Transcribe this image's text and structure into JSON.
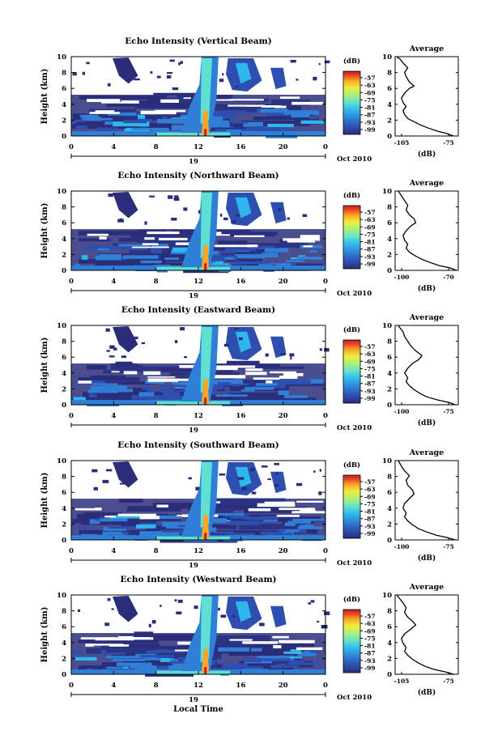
{
  "chart_data": {
    "type": "heatmap",
    "x_label": "Local Time",
    "y_label": "Height (km)",
    "x_ticks": [
      "0",
      "4",
      "8",
      "12",
      "16",
      "20",
      "0"
    ],
    "x_range": [
      0,
      24
    ],
    "y_ticks": [
      "0",
      "2",
      "4",
      "6",
      "8",
      "10"
    ],
    "y_range": [
      0,
      10
    ],
    "date_tick_label": "19",
    "month_label": "Oct 2010",
    "colorbar": {
      "label": "(dB)",
      "ticks": [
        "-57",
        "-63",
        "-69",
        "-75",
        "-81",
        "-87",
        "-93",
        "-99"
      ],
      "colors": [
        "#2a2e7a",
        "#2e4fb0",
        "#2f7fd6",
        "#2fb6ec",
        "#5fe0d0",
        "#a6f07e",
        "#f2ec3a",
        "#f9a52a",
        "#ea4a22",
        "#c41d1d"
      ]
    },
    "average_panel": {
      "title": "Average",
      "x_label": "(dB)",
      "x_ticks": [
        "-105",
        "-75"
      ],
      "x_range": [
        -105,
        -65
      ],
      "y_ticks": [
        "0",
        "2",
        "4",
        "6",
        "8",
        "10"
      ]
    },
    "panels": [
      {
        "title": "Echo Intensity (Vertical Beam)",
        "avg_x_ticks": [
          "-105",
          "-75"
        ],
        "average_profile": [
          [
            -68,
            0
          ],
          [
            -72,
            0.3
          ],
          [
            -78,
            0.6
          ],
          [
            -84,
            1
          ],
          [
            -89,
            1.4
          ],
          [
            -93,
            1.8
          ],
          [
            -97,
            2.2
          ],
          [
            -99,
            2.7
          ],
          [
            -100,
            3.2
          ],
          [
            -98,
            3.7
          ],
          [
            -100,
            4.2
          ],
          [
            -101,
            4.8
          ],
          [
            -99,
            5.4
          ],
          [
            -96,
            6
          ],
          [
            -93,
            6.3
          ],
          [
            -96,
            6.8
          ],
          [
            -98,
            7.5
          ],
          [
            -99,
            8
          ],
          [
            -97,
            8.6
          ],
          [
            -100,
            9.2
          ],
          [
            -102,
            9.7
          ],
          [
            -104,
            10
          ]
        ]
      },
      {
        "title": "Echo Intensity (Northward Beam)",
        "avg_x_ticks": [
          "-100",
          "-70"
        ],
        "average_profile": [
          [
            -66,
            0
          ],
          [
            -70,
            0.3
          ],
          [
            -77,
            0.6
          ],
          [
            -83,
            1
          ],
          [
            -88,
            1.4
          ],
          [
            -92,
            1.8
          ],
          [
            -96,
            2.3
          ],
          [
            -98,
            2.8
          ],
          [
            -97,
            3.3
          ],
          [
            -99,
            3.8
          ],
          [
            -100,
            4.4
          ],
          [
            -98,
            5
          ],
          [
            -95,
            5.6
          ],
          [
            -92,
            6
          ],
          [
            -93,
            6.5
          ],
          [
            -96,
            7
          ],
          [
            -98,
            7.6
          ],
          [
            -97,
            8.2
          ],
          [
            -99,
            8.8
          ],
          [
            -101,
            9.4
          ],
          [
            -103,
            10
          ]
        ]
      },
      {
        "title": "Echo Intensity (Eastward Beam)",
        "avg_x_ticks": [
          "-100",
          "-75"
        ],
        "average_profile": [
          [
            -67,
            0
          ],
          [
            -71,
            0.3
          ],
          [
            -78,
            0.6
          ],
          [
            -85,
            1
          ],
          [
            -89,
            1.4
          ],
          [
            -93,
            1.9
          ],
          [
            -96,
            2.4
          ],
          [
            -98,
            2.9
          ],
          [
            -97,
            3.4
          ],
          [
            -99,
            4
          ],
          [
            -97,
            4.6
          ],
          [
            -94,
            5.2
          ],
          [
            -90,
            5.7
          ],
          [
            -88,
            6.2
          ],
          [
            -92,
            6.8
          ],
          [
            -95,
            7.4
          ],
          [
            -97,
            8
          ],
          [
            -99,
            8.6
          ],
          [
            -100,
            9.2
          ],
          [
            -102,
            9.7
          ],
          [
            -103,
            10
          ]
        ]
      },
      {
        "title": "Echo Intensity (Southward Beam)",
        "avg_x_ticks": [
          "-100",
          "-75"
        ],
        "average_profile": [
          [
            -67,
            0
          ],
          [
            -72,
            0.3
          ],
          [
            -79,
            0.6
          ],
          [
            -85,
            1
          ],
          [
            -90,
            1.4
          ],
          [
            -94,
            1.9
          ],
          [
            -97,
            2.4
          ],
          [
            -99,
            2.9
          ],
          [
            -98,
            3.4
          ],
          [
            -100,
            4
          ],
          [
            -99,
            4.6
          ],
          [
            -96,
            5.2
          ],
          [
            -93,
            5.8
          ],
          [
            -94,
            6.3
          ],
          [
            -97,
            6.9
          ],
          [
            -98,
            7.5
          ],
          [
            -96,
            8.1
          ],
          [
            -99,
            8.7
          ],
          [
            -101,
            9.3
          ],
          [
            -103,
            10
          ]
        ]
      },
      {
        "title": "Echo Intensity (Westward Beam)",
        "avg_x_ticks": [
          "-105",
          "-75"
        ],
        "average_profile": [
          [
            -68,
            0
          ],
          [
            -73,
            0.3
          ],
          [
            -80,
            0.6
          ],
          [
            -86,
            1
          ],
          [
            -90,
            1.4
          ],
          [
            -94,
            1.9
          ],
          [
            -97,
            2.4
          ],
          [
            -99,
            2.9
          ],
          [
            -98,
            3.4
          ],
          [
            -100,
            3.9
          ],
          [
            -101,
            4.5
          ],
          [
            -99,
            5.1
          ],
          [
            -95,
            5.7
          ],
          [
            -92,
            6.2
          ],
          [
            -94,
            6.7
          ],
          [
            -97,
            7.2
          ],
          [
            -99,
            7.8
          ],
          [
            -98,
            8.4
          ],
          [
            -100,
            9
          ],
          [
            -102,
            9.5
          ],
          [
            -104,
            10
          ]
        ]
      }
    ]
  }
}
